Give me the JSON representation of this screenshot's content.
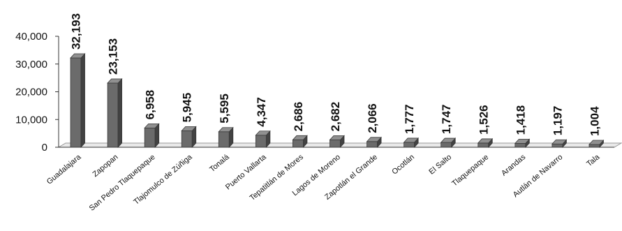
{
  "chart_data": {
    "type": "bar",
    "title": "",
    "xlabel": "",
    "ylabel": "",
    "categories": [
      "Guadalajara",
      "Zapopan",
      "San Pedro Tlaquepaque",
      "Tlajomulco de Zúñiga",
      "Tonalá",
      "Puerto Vallarta",
      "Tepatitlán de Mores",
      "Lagos de Moreno",
      "Zapotlán el Grande",
      "Ocotlán",
      "El Salto",
      "Tlaquepaque",
      "Arandas",
      "Autlán de Navarro",
      "Tala"
    ],
    "values": [
      32193,
      23153,
      6958,
      5945,
      5595,
      4347,
      2686,
      2682,
      2066,
      1777,
      1747,
      1526,
      1418,
      1197,
      1004
    ],
    "value_labels": [
      "32,193",
      "23,153",
      "6,958",
      "5,945",
      "5,595",
      "4,347",
      "2,686",
      "2,682",
      "2,066",
      "1,777",
      "1,747",
      "1,526",
      "1,418",
      "1,197",
      "1,004"
    ],
    "yticks": [
      0,
      10000,
      20000,
      30000,
      40000
    ],
    "ytick_labels": [
      "0",
      "10,000",
      "20,000",
      "30,000",
      "40,000"
    ],
    "ylim": [
      0,
      40000
    ],
    "grid": false,
    "legend": "none",
    "bar_color": "#6b6b6b",
    "style": "3d-column"
  }
}
